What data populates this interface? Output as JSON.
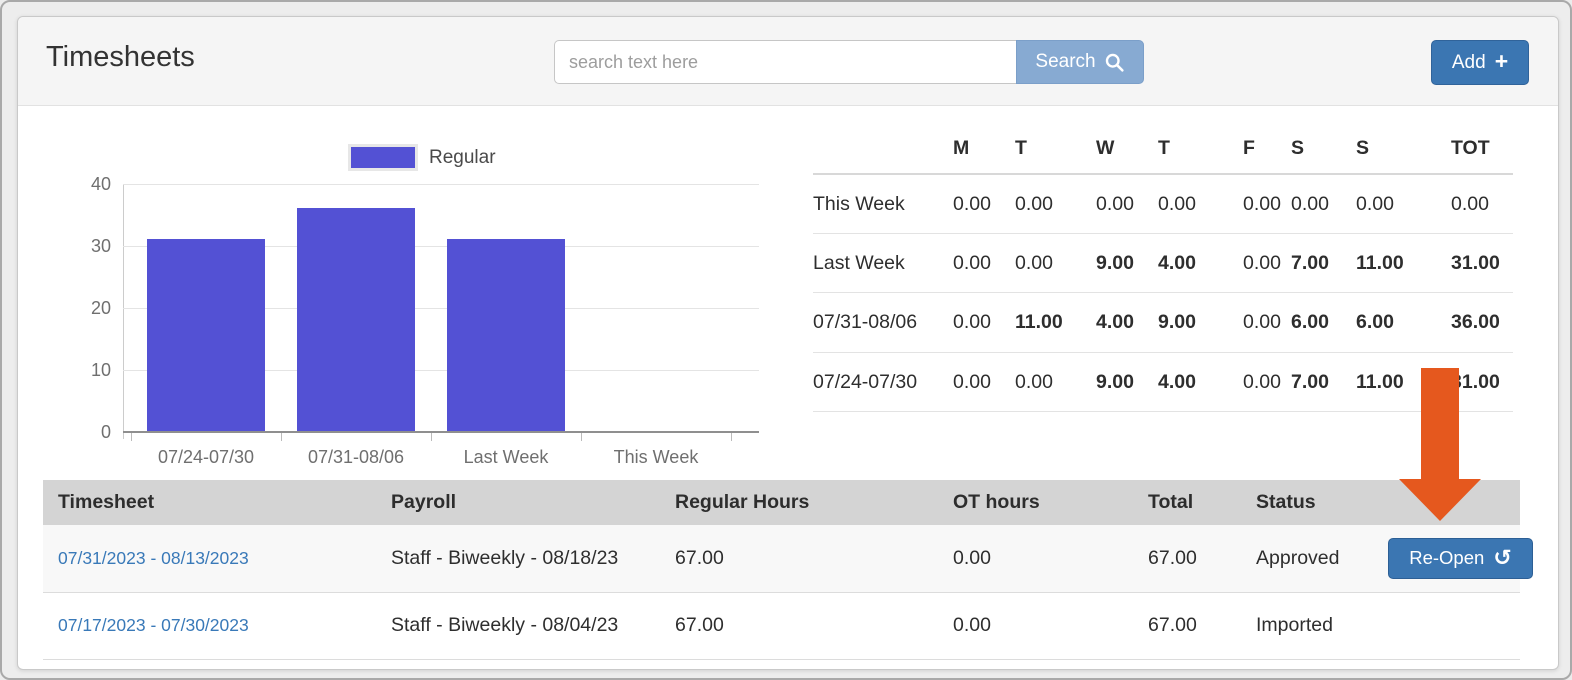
{
  "header": {
    "title": "Timesheets",
    "search_placeholder": "search text here",
    "search_value": "",
    "search_label": "Search",
    "add_label": "Add"
  },
  "icons": {
    "plus_glyph": "+",
    "undo_glyph": "↺",
    "search_icon": "magnifier"
  },
  "colors": {
    "bar": "#5351d4",
    "button_blue": "#3b76b2",
    "search_button_blue": "#87aad2",
    "link_blue": "#3979b8",
    "arrow_orange": "#e5581e",
    "table_header_gray": "#d4d4d4"
  },
  "chart_data": {
    "type": "bar",
    "title": "",
    "xlabel": "",
    "ylabel": "",
    "series_name": "Regular",
    "legend_position": "top",
    "categories": [
      "07/24-07/30",
      "07/31-08/06",
      "Last Week",
      "This Week"
    ],
    "values": [
      31,
      36,
      31,
      0
    ],
    "ylim": [
      0,
      40
    ],
    "yticks": [
      0,
      10,
      20,
      30,
      40
    ],
    "grid": true
  },
  "weekly_summary": {
    "columns": [
      "",
      "M",
      "T",
      "W",
      "T",
      "F",
      "S",
      "S",
      "TOT"
    ],
    "rows": [
      {
        "label": "This Week",
        "values": [
          "0.00",
          "0.00",
          "0.00",
          "0.00",
          "0.00",
          "0.00",
          "0.00",
          "0.00"
        ]
      },
      {
        "label": "Last Week",
        "values": [
          "0.00",
          "0.00",
          "9.00",
          "4.00",
          "0.00",
          "7.00",
          "11.00",
          "31.00"
        ]
      },
      {
        "label": "07/31-08/06",
        "values": [
          "0.00",
          "11.00",
          "4.00",
          "9.00",
          "0.00",
          "6.00",
          "6.00",
          "36.00"
        ]
      },
      {
        "label": "07/24-07/30",
        "values": [
          "0.00",
          "0.00",
          "9.00",
          "4.00",
          "0.00",
          "7.00",
          "11.00",
          "31.00"
        ]
      }
    ]
  },
  "timesheet_table": {
    "columns": [
      "Timesheet",
      "Payroll",
      "Regular Hours",
      "OT hours",
      "Total",
      "Status",
      ""
    ],
    "rows": [
      {
        "timesheet": "07/31/2023 - 08/13/2023",
        "payroll": "Staff - Biweekly - 08/18/23",
        "regular_hours": "67.00",
        "ot_hours": "0.00",
        "total": "67.00",
        "status": "Approved",
        "action": "Re-Open"
      },
      {
        "timesheet": "07/17/2023 - 07/30/2023",
        "payroll": "Staff - Biweekly - 08/04/23",
        "regular_hours": "67.00",
        "ot_hours": "0.00",
        "total": "67.00",
        "status": "Imported",
        "action": ""
      }
    ]
  }
}
